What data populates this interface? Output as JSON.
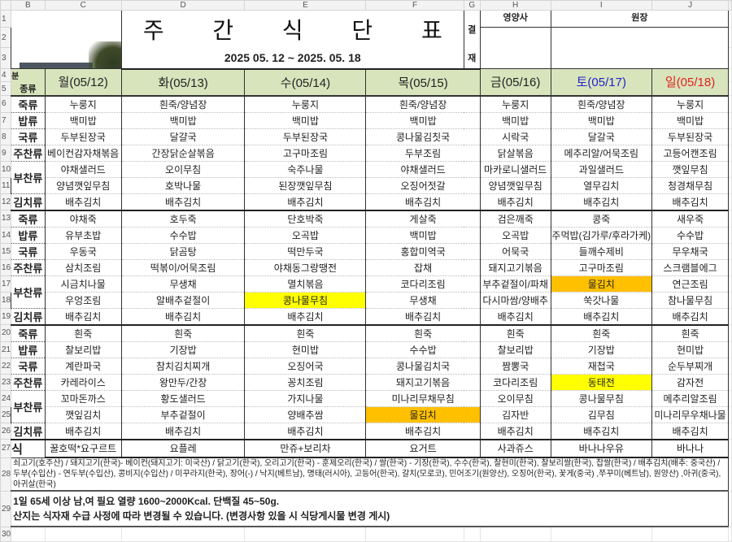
{
  "columns": [
    "B",
    "C",
    "D",
    "E",
    "F",
    "G",
    "H",
    "I",
    "J"
  ],
  "header": {
    "title": "주 간 식 단 표",
    "date_range": "2025 05. 12 ~ 2025. 05. 18",
    "approval_label_top": "결",
    "approval_label_bottom": "재",
    "approver_1": "영양사",
    "approver_2": "원장"
  },
  "corner": {
    "top": "분",
    "bottom": "종류"
  },
  "days": [
    {
      "label": "월(05/12)",
      "color": "#222222"
    },
    {
      "label": "화(05/13)",
      "color": "#222222"
    },
    {
      "label": "수(05/14)",
      "color": "#222222"
    },
    {
      "label": "목(05/15)",
      "color": "#222222"
    },
    {
      "label": "금(05/16)",
      "color": "#222222"
    },
    {
      "label": "토(05/17)",
      "color": "#2323c8"
    },
    {
      "label": "일(05/18)",
      "color": "#e02020"
    }
  ],
  "categories": [
    "죽류",
    "밥류",
    "국류",
    "주찬류",
    "부찬류",
    "",
    "김치류"
  ],
  "highlight_colors": {
    "yellow": "#ffff00",
    "orange": "#ffc000"
  },
  "meals": [
    {
      "rows": [
        [
          "누룽지",
          "흰죽/양념장",
          "누룽지",
          "흰죽/양념장",
          "누룽지",
          "흰죽/양념장",
          "누룽지"
        ],
        [
          "백미밥",
          "백미밥",
          "백미밥",
          "백미밥",
          "백미밥",
          "백미밥",
          "백미밥"
        ],
        [
          "두부된장국",
          "달걀국",
          "두부된장국",
          "콩나물김칫국",
          "시락국",
          "달갈국",
          "두부된장국"
        ],
        [
          "베이컨감자채볶음",
          "간장닭순살볶음",
          "고구마조림",
          "두부조림",
          "닭살볶음",
          "메추리알/어묵조림",
          "고등어캔조림"
        ],
        [
          "야채샐러드",
          "오이무침",
          "숙주나물",
          "야채샐러드",
          "마카로니샐러드",
          "과일샐러드",
          "깻잎무침"
        ],
        [
          "양념깻잎무침",
          "호박나물",
          "된장깻잎무침",
          "오징어젓갈",
          "양념깻잎무침",
          "열무김치",
          "청경채무침"
        ],
        [
          "배추김치",
          "배추김치",
          "배추김치",
          "배추김치",
          "배추김치",
          "배추김치",
          "배추김치"
        ]
      ],
      "highlights": []
    },
    {
      "rows": [
        [
          "야채죽",
          "호두죽",
          "단호박죽",
          "게살죽",
          "검은깨죽",
          "콩죽",
          "새우죽"
        ],
        [
          "유부초밥",
          "수수밥",
          "오곡밥",
          "백미밥",
          "오곡밥",
          "주먹밥(김가루/후라가케)",
          "수수밥"
        ],
        [
          "우동국",
          "닭곰탕",
          "떡만두국",
          "홍합미역국",
          "어묵국",
          "들깨수제비",
          "무우채국"
        ],
        [
          "삼치조림",
          "떡볶이/어묵조림",
          "야채동그랑땡전",
          "잡채",
          "돼지고기볶음",
          "고구마조림",
          "스크램블에그"
        ],
        [
          "시금치나물",
          "무생채",
          "멸치볶음",
          "코다리조림",
          "부추겉절이/파채",
          "물김치",
          "연근조림"
        ],
        [
          "우엉조림",
          "알배추겉절이",
          "콩나물무침",
          "무생채",
          "다시마쌈/양배추",
          "쑥갓나물",
          "참나물무침"
        ],
        [
          "배추김치",
          "배추김치",
          "배추김치",
          "배추김치",
          "배추김치",
          "배추김치",
          "배추김치"
        ]
      ],
      "highlights": [
        {
          "row": 5,
          "day": 2,
          "color": "yellow"
        },
        {
          "row": 4,
          "day": 5,
          "color": "orange"
        }
      ]
    },
    {
      "rows": [
        [
          "흰죽",
          "흰죽",
          "흰죽",
          "흰죽",
          "흰죽",
          "흰죽",
          "흰죽"
        ],
        [
          "찰보리밥",
          "기장밥",
          "현미밥",
          "수수밥",
          "찰보리밥",
          "기장밥",
          "현미밥"
        ],
        [
          "계란파국",
          "참치김치찌개",
          "오징어국",
          "콩나물김치국",
          "짬뽕국",
          "재첩국",
          "순두부찌개"
        ],
        [
          "카레라이스",
          "왕만두/간장",
          "꽁치조림",
          "돼지고기볶음",
          "코다리조림",
          "동태전",
          "감자전"
        ],
        [
          "꼬마돈까스",
          "황도샐러드",
          "가지나물",
          "미나리무채무침",
          "오이무침",
          "콩나물무침",
          "메추리알조림"
        ],
        [
          "깻잎김치",
          "부추겉절이",
          "양배추쌈",
          "물김치",
          "김자반",
          "김무침",
          "미나리무우채나물"
        ],
        [
          "배추김치",
          "배추김치",
          "배추김치",
          "배추김치",
          "배추김치",
          "배추김치",
          "배추김치"
        ]
      ],
      "highlights": [
        {
          "row": 5,
          "day": 3,
          "color": "orange"
        },
        {
          "row": 3,
          "day": 5,
          "color": "yellow"
        }
      ]
    }
  ],
  "snack": {
    "label": "식",
    "items": [
      "꿀호떡*요구르트",
      "요플레",
      "만쥬+보리차",
      "요거트",
      "사과쥬스",
      "바나나우유",
      "바나나"
    ]
  },
  "origin_note": "쇠고기(호주산) / 돼지고기(한국)- 베이컨(돼지고기: 미국산) / 닭고기(한국), 오리고기(한국) - 훈제오리(한국) / 쌀(한국) - 기장(한국), 수수(한국), 찰현미(한국), 찰보리쌀(한국), 찹쌀(한국) / 배추김치(배추: 중국산) / 두부(수입산) - 연두부(수입산), 콩비지(수입산) / 미꾸라지(한국), 장어(-) / 낙지(베트남), 명태(러시아), 고등어(한국), 갈치(모로코), 민어조기(원양산), 오징어(한국), 꽃게(중국) ,쭈꾸미(베트남), 원양산) ,아귀(중국), 아귀살(한국)",
  "notes": [
    "1일 65세 이상 남,여 필요 열량 1600~2000Kcal. 단백질 45~50g.",
    "산지는 식자재 수급 사정에 따라 변경될 수 있습니다. (변경사항 있을 시 식당게시물 변경 게시)"
  ]
}
